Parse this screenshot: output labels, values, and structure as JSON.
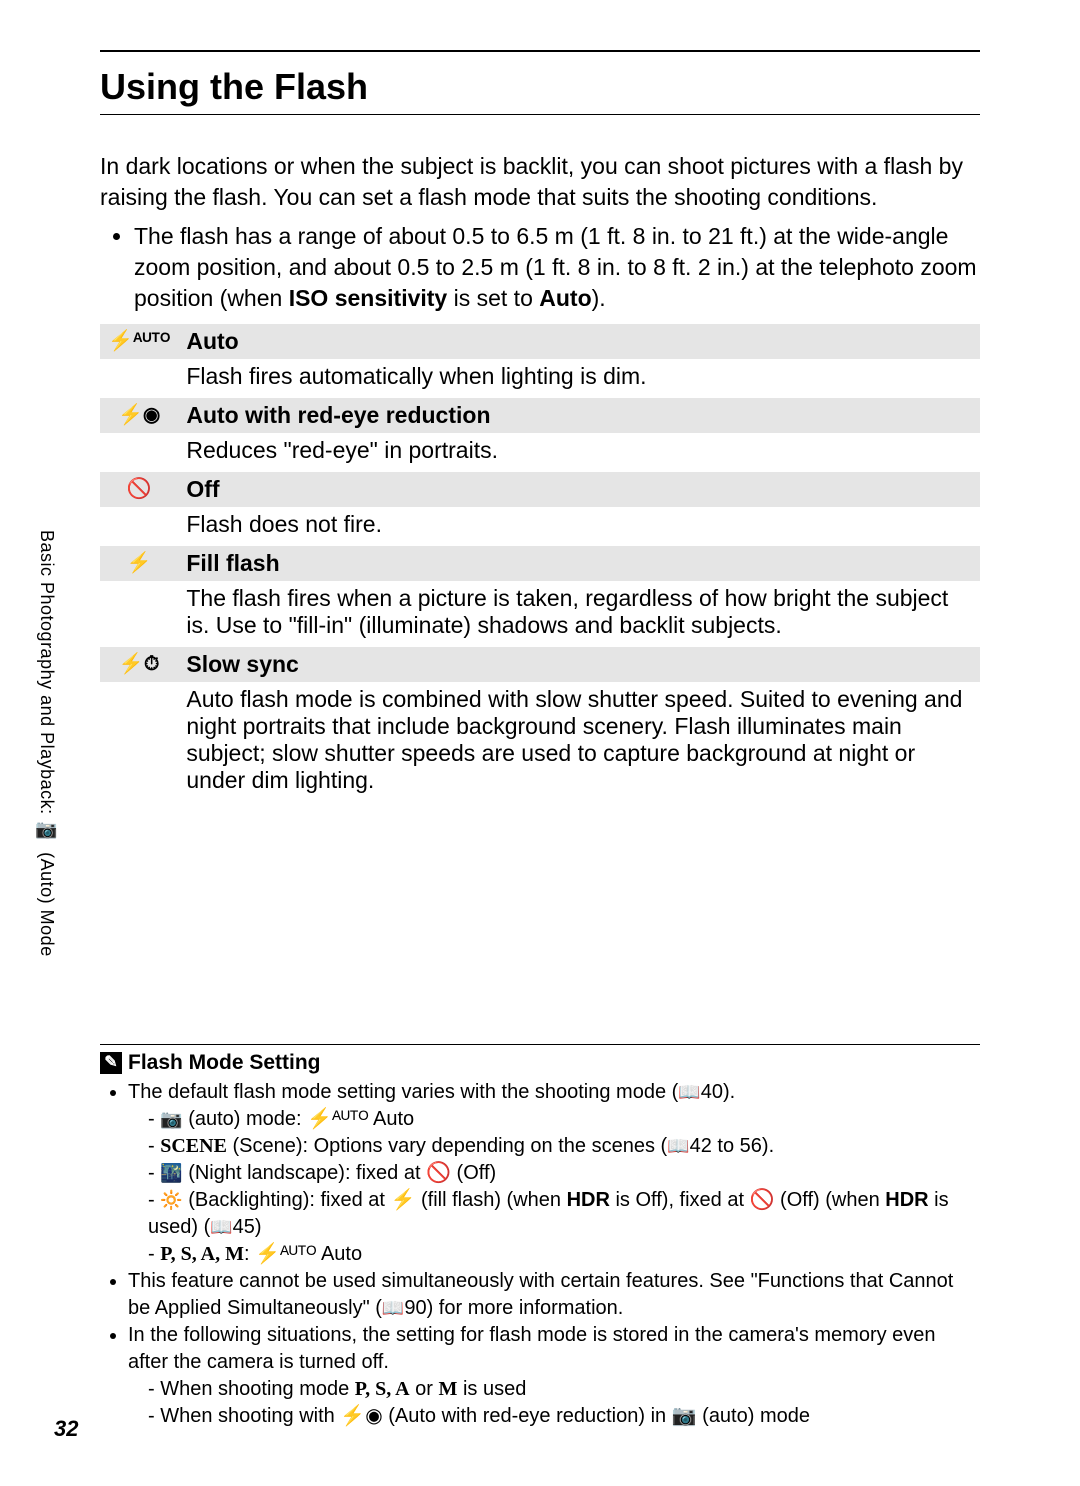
{
  "page_number": "32",
  "sidebar": {
    "text_before": "Basic Photography and Playback: ",
    "icon": "📷",
    "text_after": " (Auto) Mode"
  },
  "title": "Using the Flash",
  "intro": "In dark locations or when the subject is backlit, you can shoot pictures with a flash by raising the flash. You can set a flash mode that suits the shooting conditions.",
  "range_bullet": {
    "pre": "The flash has a range of about 0.5 to 6.5 m (1 ft. 8 in. to 21 ft.) at the wide-angle zoom position, and about 0.5 to 2.5 m (1 ft. 8 in. to 8 ft. 2 in.) at the telephoto zoom position (when ",
    "bold1": "ISO sensitivity",
    "mid": " is set to ",
    "bold2": "Auto",
    "post": ")."
  },
  "modes": [
    {
      "icon": "⚡ᴬᵁᵀᴼ",
      "name": "Auto",
      "desc": "Flash fires automatically when lighting is dim."
    },
    {
      "icon": "⚡◉",
      "name": "Auto with red-eye reduction",
      "desc": "Reduces \"red-eye\" in portraits."
    },
    {
      "icon": "🚫",
      "name": "Off",
      "desc": "Flash does not fire."
    },
    {
      "icon": "⚡",
      "name": "Fill flash",
      "desc": "The flash fires when a picture is taken, regardless of how bright the subject is. Use to \"fill-in\" (illuminate) shadows and backlit subjects."
    },
    {
      "icon": "⚡⏱",
      "name": "Slow sync",
      "desc": "Auto flash mode is combined with slow shutter speed. Suited to evening and night portraits that include background scenery. Flash illuminates main subject; slow shutter speeds are used to capture background at night or under dim lighting."
    }
  ],
  "note": {
    "title": "Flash Mode Setting",
    "items": {
      "a": {
        "pre": "The default flash mode setting varies with the shooting mode (",
        "ref": "40",
        "post": ")."
      },
      "a_sub": {
        "s1": {
          "icon": "📷",
          "text": " (auto) mode: ⚡ᴬᵁᵀᴼ Auto"
        },
        "s2": {
          "icon": "SCENE",
          "pre": " (Scene): Options vary depending on the scenes (",
          "ref": "42 to 56",
          "post": ")."
        },
        "s3": {
          "icon": "🌃",
          "text": " (Night landscape): fixed at 🚫 (Off)"
        },
        "s4": {
          "icon": "🔆",
          "pre": " (Backlighting): fixed at ⚡ (fill flash) (when ",
          "b1": "HDR",
          "mid": " is Off), fixed at 🚫 (Off) (when ",
          "b2": "HDR",
          "post": " is used) (",
          "ref": "45",
          "end": ")"
        },
        "s5": {
          "modes": "P, S, A, M",
          "text": ": ⚡ᴬᵁᵀᴼ Auto"
        }
      },
      "b": {
        "pre": "This feature cannot be used simultaneously with certain features. See \"Functions that Cannot be Applied Simultaneously\" (",
        "ref": "90",
        "post": ") for more information."
      },
      "c": "In the following situations, the setting for flash mode is stored in the camera's memory even after the camera is turned off.",
      "c_sub": {
        "s1": {
          "pre": "When shooting mode ",
          "modes": "P, S, A",
          "mid": " or ",
          "mode_m": "M",
          "post": " is used"
        },
        "s2": "When shooting with ⚡◉ (Auto with red-eye reduction) in 📷 (auto) mode"
      }
    }
  }
}
